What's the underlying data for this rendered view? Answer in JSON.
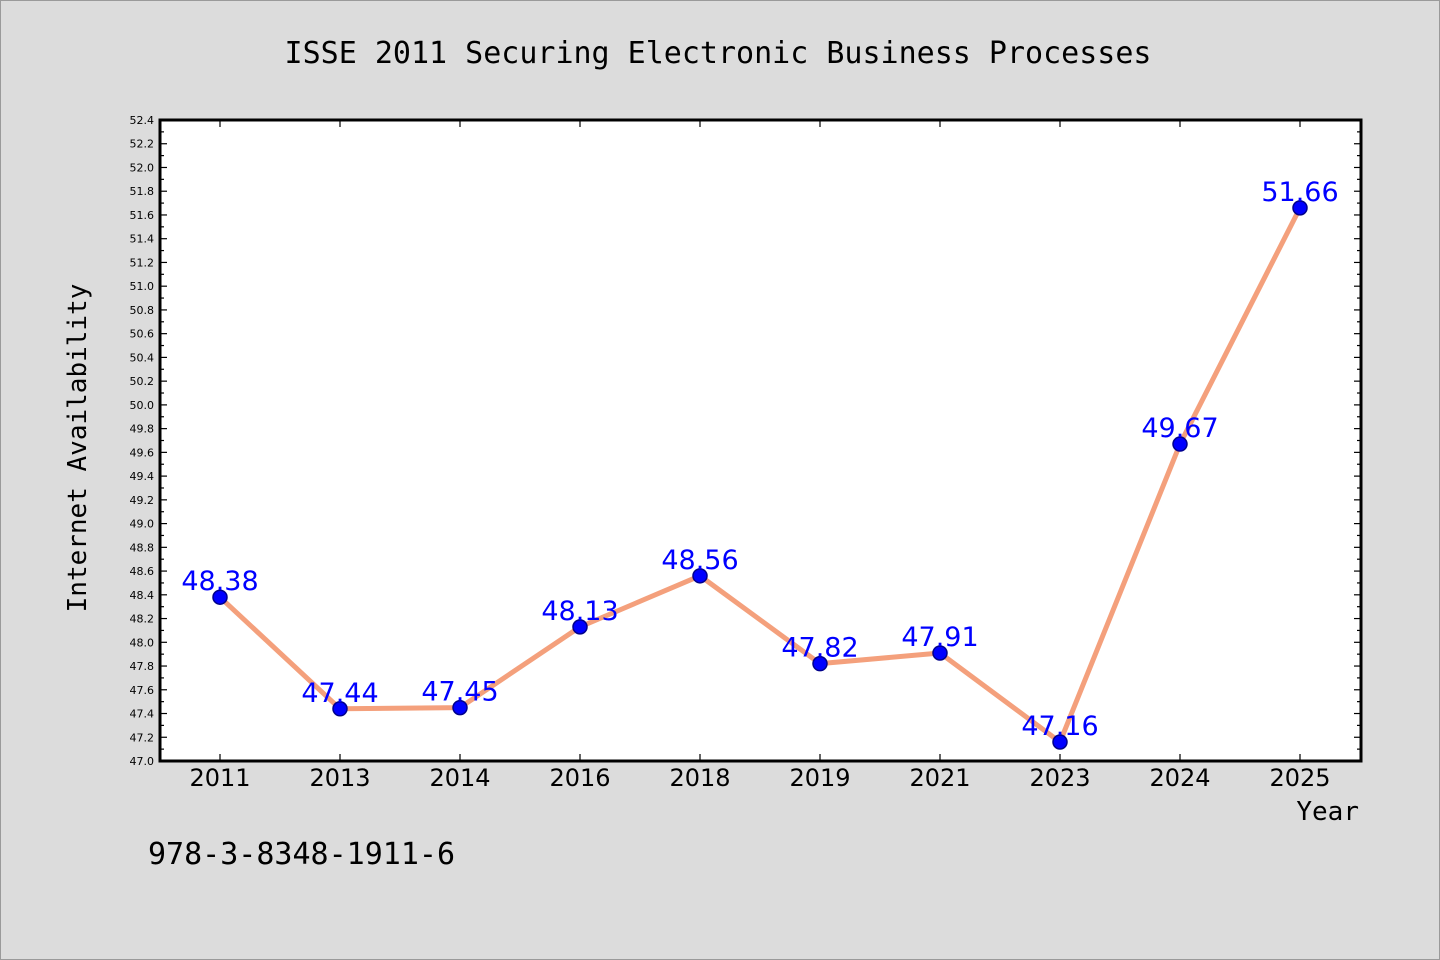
{
  "chart_data": {
    "type": "line",
    "title": "ISSE 2011 Securing Electronic Business Processes",
    "xlabel": "Year",
    "ylabel": "Internet Availability",
    "categories": [
      "2011",
      "2013",
      "2014",
      "2016",
      "2018",
      "2019",
      "2021",
      "2023",
      "2024",
      "2025"
    ],
    "series": [
      {
        "values": [
          48.38,
          47.44,
          47.45,
          48.13,
          48.56,
          47.82,
          47.91,
          47.16,
          49.67,
          51.66
        ],
        "labels": [
          "48.38",
          "47.44",
          "47.45",
          "48.13",
          "48.56",
          "47.82",
          "47.91",
          "47.16",
          "49.67",
          "51.66"
        ]
      }
    ],
    "ylim": [
      47.0,
      52.4
    ],
    "yticks": [
      "47.0",
      "47.2",
      "47.4",
      "47.6",
      "47.8",
      "48.0",
      "48.2",
      "48.4",
      "48.6",
      "48.8",
      "49.0",
      "49.2",
      "49.4",
      "49.6",
      "49.8",
      "50.0",
      "50.2",
      "50.4",
      "50.6",
      "50.8",
      "51.0",
      "51.2",
      "51.4",
      "51.6",
      "51.8",
      "52.0",
      "52.2",
      "52.4"
    ],
    "grid": false,
    "line_color": "#f4a07c",
    "marker_color": "#0000ff",
    "label_color": "#0000ff",
    "background": "#dcdcdc"
  },
  "footer": {
    "isbn": "978-3-8348-1911-6"
  }
}
